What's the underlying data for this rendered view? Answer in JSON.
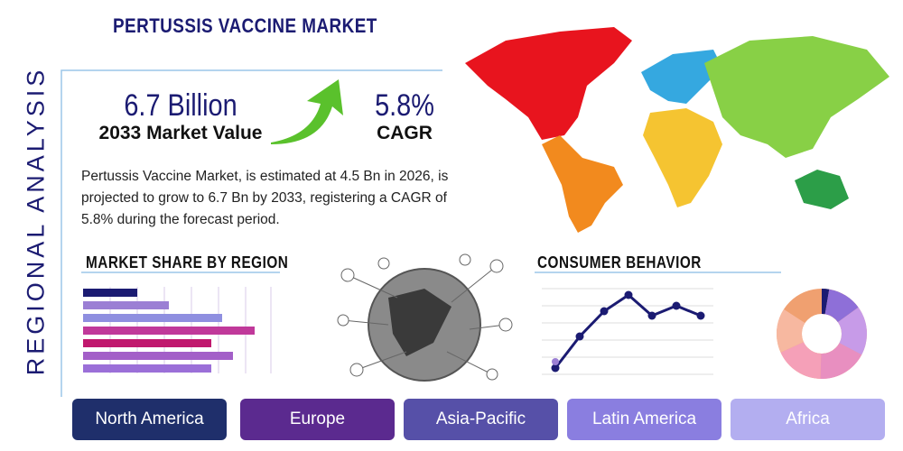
{
  "header": {
    "title": "PERTUSSIS VACCINE MARKET"
  },
  "sidebar": {
    "label": "REGIONAL ANALYSIS"
  },
  "stats": [
    {
      "value": "6.7 Billion",
      "label": "2033 Market Value"
    },
    {
      "value": "5.8%",
      "label": "CAGR"
    }
  ],
  "description": "Pertussis Vaccine Market, is estimated at 4.5 Bn in 2026, is projected to grow to 6.7 Bn by 2033, registering a CAGR of 5.8% during the forecast period.",
  "sections": {
    "market_share": "MARKET SHARE BY REGION",
    "consumer_behavior": "CONSUMER BEHAVIOR"
  },
  "regions": [
    "North America",
    "Europe",
    "Asia-Pacific",
    "Latin America",
    "Africa"
  ]
}
